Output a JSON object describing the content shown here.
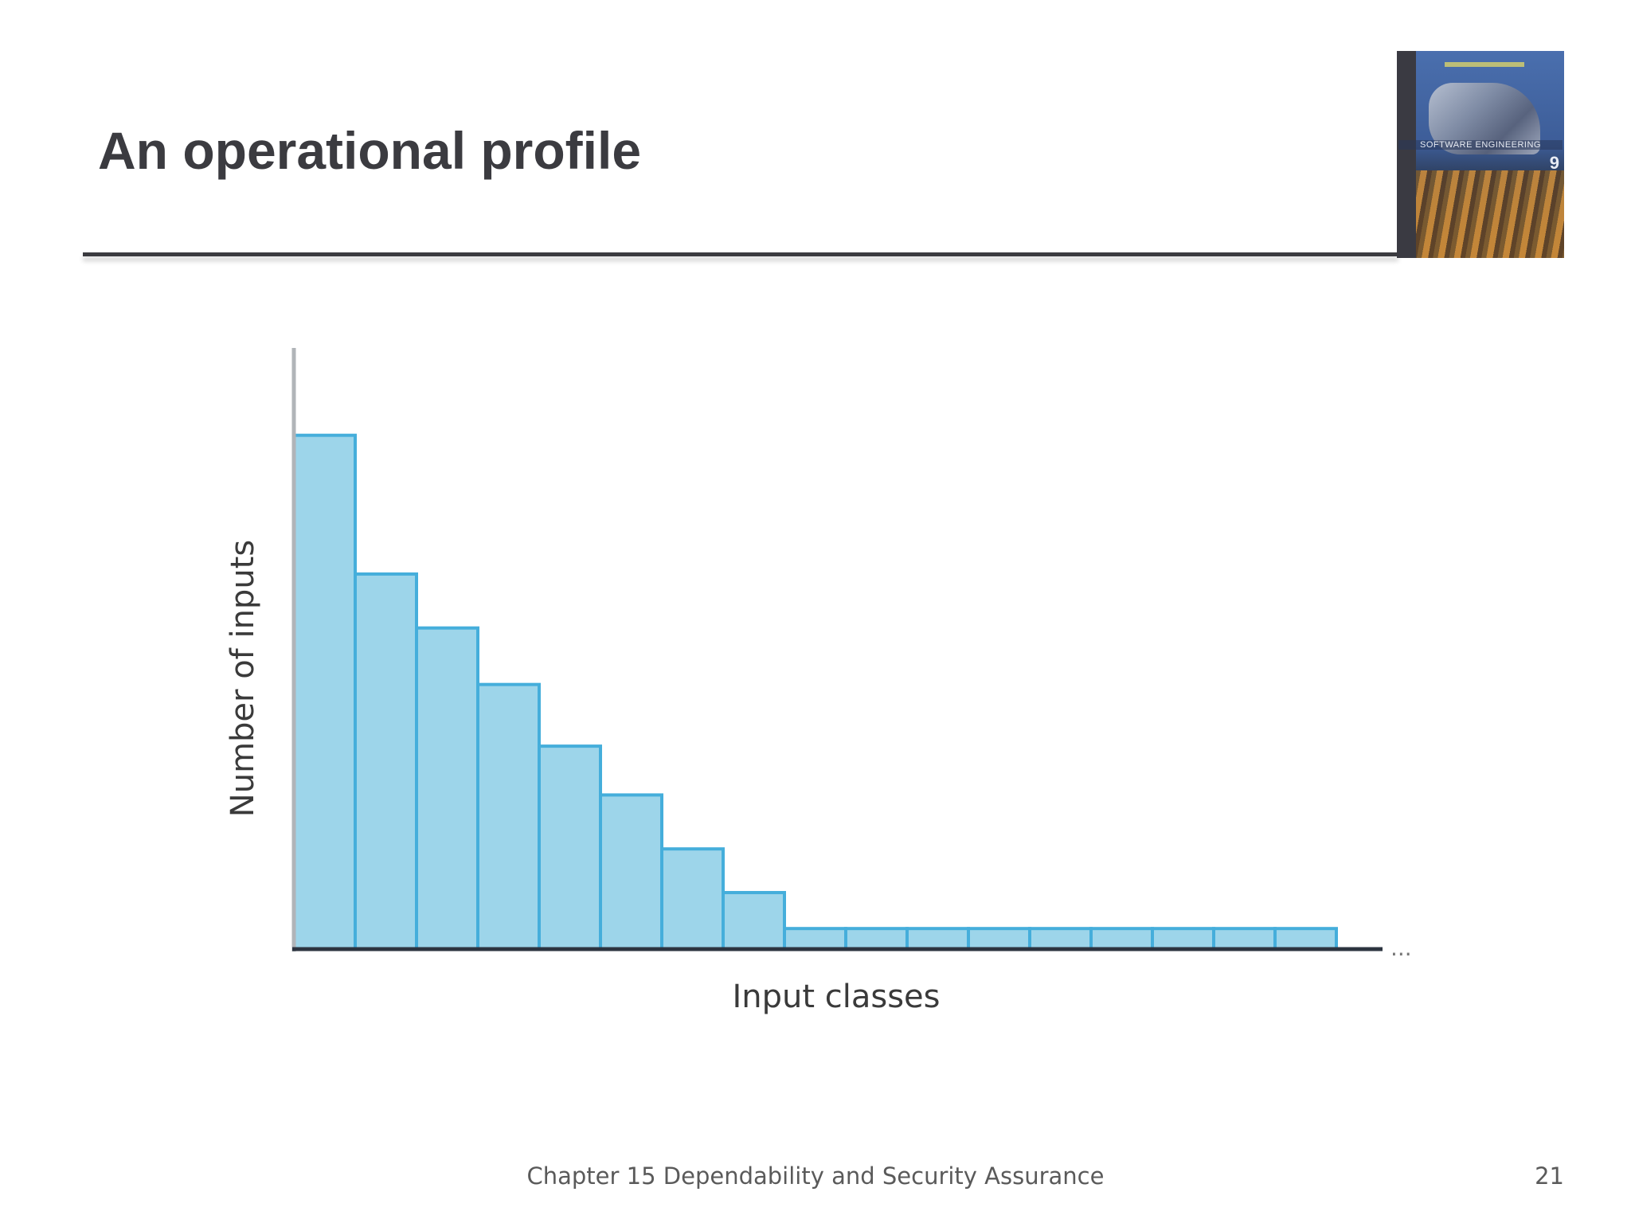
{
  "slide": {
    "title": "An operational profile",
    "footer": "Chapter 15 Dependability and Security Assurance",
    "page_number": "21"
  },
  "book_cover": {
    "cover_title": "SOFTWARE ENGINEERING",
    "edition": "9"
  },
  "chart_data": {
    "type": "bar",
    "xlabel": "Input classes",
    "ylabel": "Number of inputs",
    "continuation_marker": "...",
    "values": [
      100,
      73,
      62.5,
      51.5,
      39.5,
      30,
      19.5,
      11,
      4,
      4,
      4,
      4,
      4,
      4,
      4,
      4,
      4
    ],
    "ylim": [
      0,
      117
    ],
    "grid": false,
    "legend": "none",
    "colors": {
      "bar_fill": "#9dd5ea",
      "bar_stroke": "#45aedb",
      "axis": "#2c3440"
    }
  }
}
